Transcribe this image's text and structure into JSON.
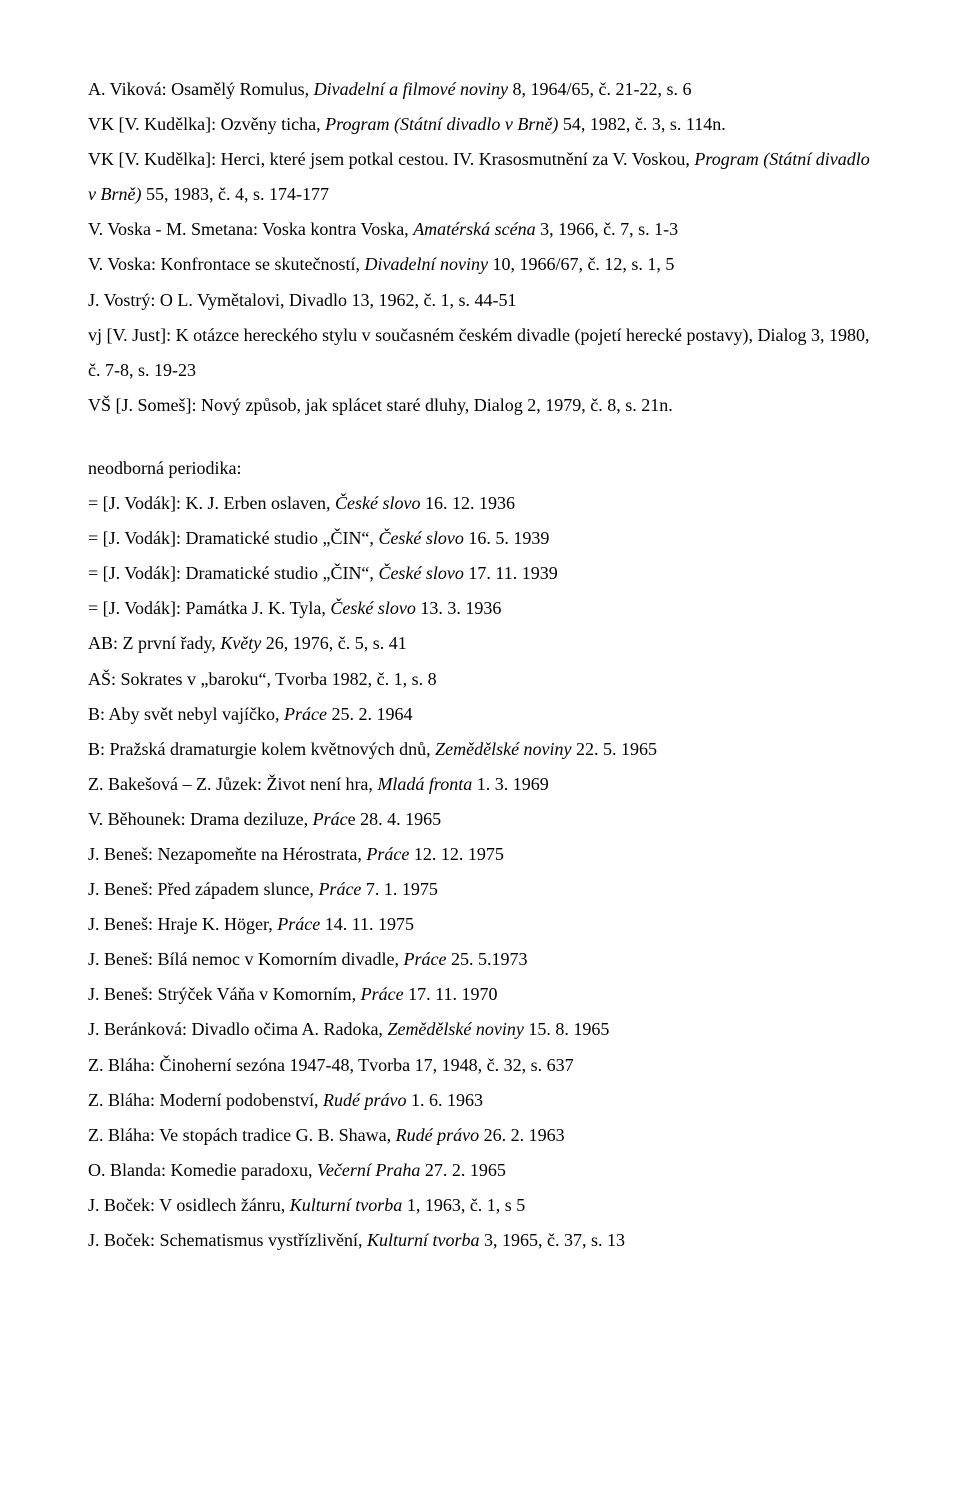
{
  "entries_top": [
    [
      {
        "t": "A. Viková: Osamělý Romulus, "
      },
      {
        "t": "Divadelní a filmové noviny",
        "i": true
      },
      {
        "t": " 8, 1964/65, č. 21-22, s. 6"
      }
    ],
    [
      {
        "t": "VK [V. Kudělka]: Ozvěny ticha, "
      },
      {
        "t": "Program (Státní divadlo v Brně)",
        "i": true
      },
      {
        "t": " 54, 1982, č. 3, s. 114n."
      }
    ],
    [
      {
        "t": "VK [V. Kudělka]: Herci, které jsem potkal cestou. IV. Krasosmutnění za V. Voskou, "
      },
      {
        "t": "Program (Státní divadlo v Brně)",
        "i": true
      },
      {
        "t": " 55, 1983, č. 4, s. 174-177"
      }
    ],
    [
      {
        "t": "V. Voska - M. Smetana: Voska kontra Voska, "
      },
      {
        "t": "Amatérská scéna",
        "i": true
      },
      {
        "t": " 3, 1966, č. 7, s. 1-3"
      }
    ],
    [
      {
        "t": "V. Voska: Konfrontace se skutečností, "
      },
      {
        "t": "Divadelní noviny",
        "i": true
      },
      {
        "t": " 10, 1966/67, č. 12, s. 1, 5"
      }
    ],
    [
      {
        "t": "J. Vostrý: O L. Vymětalovi, Divadlo 13, 1962, č. 1, s. 44-51"
      }
    ],
    [
      {
        "t": "vj [V. Just]: K otázce hereckého stylu v současném českém divadle (pojetí herecké postavy), Dialog 3, 1980, č. 7-8, s. 19-23"
      }
    ],
    [
      {
        "t": "VŠ [J. Someš]: Nový způsob, jak splácet staré dluhy, Dialog 2, 1979, č. 8, s. 21n."
      }
    ]
  ],
  "section_label": "neodborná periodika:",
  "entries_bottom": [
    [
      {
        "t": "= [J. Vodák]: K. J. Erben oslaven, "
      },
      {
        "t": "České slovo",
        "i": true
      },
      {
        "t": " 16. 12. 1936"
      }
    ],
    [
      {
        "t": "= [J. Vodák]: Dramatické studio „ČIN“, "
      },
      {
        "t": "České slovo",
        "i": true
      },
      {
        "t": " 16. 5. 1939"
      }
    ],
    [
      {
        "t": "= [J. Vodák]: Dramatické studio „ČIN“, "
      },
      {
        "t": "České slovo",
        "i": true
      },
      {
        "t": " 17. 11. 1939"
      }
    ],
    [
      {
        "t": "= [J. Vodák]: Památka J. K. Tyla, "
      },
      {
        "t": "České slovo",
        "i": true
      },
      {
        "t": " 13. 3. 1936"
      }
    ],
    [
      {
        "t": "AB: Z první řady, "
      },
      {
        "t": "Květy",
        "i": true
      },
      {
        "t": " 26, 1976, č. 5, s. 41"
      }
    ],
    [
      {
        "t": "AŠ: Sokrates v „baroku“, Tvorba 1982, č. 1, s. 8"
      }
    ],
    [
      {
        "t": "B: Aby svět nebyl vajíčko, "
      },
      {
        "t": "Práce",
        "i": true
      },
      {
        "t": " 25. 2. 1964"
      }
    ],
    [
      {
        "t": "B: Pražská dramaturgie kolem květnových dnů, "
      },
      {
        "t": "Zemědělské noviny",
        "i": true
      },
      {
        "t": " 22. 5. 1965"
      }
    ],
    [
      {
        "t": "Z. Bakešová – Z. Jůzek: Život není hra, "
      },
      {
        "t": "Mladá fronta",
        "i": true
      },
      {
        "t": " 1. 3. 1969"
      }
    ],
    [
      {
        "t": "V. Běhounek: Drama deziluze, "
      },
      {
        "t": "Prác",
        "i": true
      },
      {
        "t": "e 28. 4. 1965"
      }
    ],
    [
      {
        "t": "J. Beneš: Nezapomeňte na Hérostrata, "
      },
      {
        "t": "Práce",
        "i": true
      },
      {
        "t": " 12. 12. 1975"
      }
    ],
    [
      {
        "t": "J. Beneš: Před západem slunce, "
      },
      {
        "t": "Práce",
        "i": true
      },
      {
        "t": " 7. 1. 1975"
      }
    ],
    [
      {
        "t": "J. Beneš:  Hraje K. Höger, "
      },
      {
        "t": "Práce",
        "i": true
      },
      {
        "t": " 14. 11. 1975"
      }
    ],
    [
      {
        "t": "J. Beneš: Bílá nemoc v Komorním divadle, "
      },
      {
        "t": "Práce",
        "i": true
      },
      {
        "t": " 25. 5.1973"
      }
    ],
    [
      {
        "t": "J. Beneš: Strýček Váňa v Komorním, "
      },
      {
        "t": "Práce",
        "i": true
      },
      {
        "t": " 17. 11. 1970"
      }
    ],
    [
      {
        "t": "J. Beránková: Divadlo očima A. Radoka, "
      },
      {
        "t": "Zemědělské noviny",
        "i": true
      },
      {
        "t": " 15. 8. 1965"
      }
    ],
    [
      {
        "t": "Z. Bláha: Činoherní sezóna 1947-48, Tvorba 17, 1948, č. 32, s. 637"
      }
    ],
    [
      {
        "t": "Z. Bláha: Moderní podobenství, "
      },
      {
        "t": "Rudé právo",
        "i": true
      },
      {
        "t": " 1. 6. 1963"
      }
    ],
    [
      {
        "t": "Z. Bláha: Ve stopách tradice G. B. Shawa, "
      },
      {
        "t": "Rudé právo",
        "i": true
      },
      {
        "t": " 26. 2. 1963"
      }
    ],
    [
      {
        "t": "O. Blanda: Komedie paradoxu, "
      },
      {
        "t": "Večerní Praha",
        "i": true
      },
      {
        "t": " 27. 2. 1965"
      }
    ],
    [
      {
        "t": "J. Boček: V osidlech žánru, "
      },
      {
        "t": "Kulturní tvorba",
        "i": true
      },
      {
        "t": " 1, 1963, č. 1, s 5"
      }
    ],
    [
      {
        "t": "J. Boček: Schematismus vystřízlivění, "
      },
      {
        "t": "Kulturní tvorba",
        "i": true
      },
      {
        "t": " 3, 1965, č. 37, s. 13"
      }
    ]
  ]
}
